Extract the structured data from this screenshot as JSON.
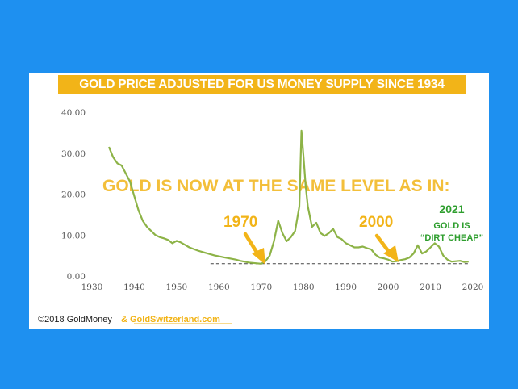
{
  "colors": {
    "background": "#1E90F0",
    "accent": "#F2B418",
    "line": "#8DB347",
    "green_text": "#2E9E2E"
  },
  "chart_data": {
    "type": "line",
    "title": "GOLD PRICE ADJUSTED FOR US MONEY SUPPLY SINCE 1934",
    "xlim": [
      1930,
      2020
    ],
    "ylim": [
      0,
      40
    ],
    "x_ticks": [
      "1930",
      "1940",
      "1950",
      "1960",
      "1970",
      "1980",
      "1990",
      "2000",
      "2010",
      "2020"
    ],
    "y_ticks": [
      "0.00",
      "10.00",
      "20.00",
      "30.00",
      "40.00"
    ],
    "grid": false,
    "reference_line": {
      "y": 3,
      "style": "dashed"
    },
    "series": [
      {
        "x": [
          1934,
          1935,
          1936,
          1937,
          1938,
          1939,
          1940,
          1941,
          1942,
          1943,
          1944,
          1945,
          1946,
          1947,
          1948,
          1949,
          1950,
          1951,
          1952,
          1953,
          1954,
          1955,
          1956,
          1957,
          1958,
          1959,
          1960,
          1961,
          1962,
          1963,
          1964,
          1965,
          1966,
          1967,
          1968,
          1969,
          1970,
          1971,
          1972,
          1973,
          1974,
          1975,
          1976,
          1977,
          1978,
          1979,
          1979.5,
          1980,
          1980.5,
          1981,
          1982,
          1983,
          1984,
          1985,
          1986,
          1987,
          1988,
          1989,
          1990,
          1991,
          1992,
          1993,
          1994,
          1995,
          1996,
          1997,
          1998,
          1999,
          2000,
          2001,
          2002,
          2003,
          2004,
          2005,
          2006,
          2007,
          2008,
          2009,
          2010,
          2011,
          2012,
          2013,
          2014,
          2015,
          2016,
          2017,
          2018,
          2019
        ],
        "values": [
          31.5,
          29.0,
          27.5,
          27.0,
          25.0,
          23.0,
          19.5,
          16.0,
          13.5,
          12.0,
          11.0,
          10.0,
          9.5,
          9.2,
          8.8,
          8.0,
          8.6,
          8.2,
          7.6,
          7.0,
          6.6,
          6.2,
          5.9,
          5.6,
          5.3,
          5.0,
          4.8,
          4.6,
          4.4,
          4.2,
          4.0,
          3.7,
          3.5,
          3.3,
          3.2,
          3.1,
          3.0,
          3.6,
          5.0,
          8.5,
          13.5,
          10.5,
          8.5,
          9.5,
          11.0,
          17.0,
          35.5,
          29.0,
          22.0,
          17.0,
          12.0,
          13.0,
          10.5,
          9.8,
          10.5,
          11.5,
          9.5,
          9.0,
          8.0,
          7.5,
          7.0,
          7.0,
          7.2,
          6.8,
          6.5,
          5.2,
          4.5,
          4.3,
          4.0,
          3.5,
          3.6,
          3.9,
          4.1,
          4.5,
          5.5,
          7.5,
          5.5,
          6.0,
          7.0,
          8.0,
          7.2,
          5.0,
          4.0,
          3.5,
          3.6,
          3.7,
          3.4,
          3.5
        ]
      }
    ],
    "annotations": {
      "headline": "GOLD IS NOW AT THE SAME LEVEL AS IN:",
      "label_1970": "1970",
      "label_2000": "2000",
      "label_2021_year": "2021",
      "label_2021_line1": "GOLD IS",
      "label_2021_line2": "“DIRT CHEAP”"
    }
  },
  "footer": {
    "copyright": "©2018 GoldMoney",
    "site": "&  GoldSwitzerland.com"
  }
}
